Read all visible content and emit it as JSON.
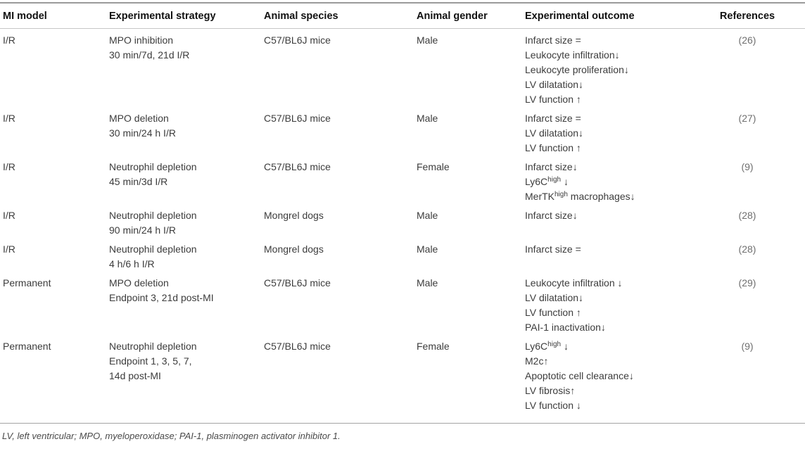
{
  "table": {
    "columns": [
      "MI model",
      "Experimental strategy",
      "Animal species",
      "Animal gender",
      "Experimental outcome",
      "References"
    ],
    "rows": [
      {
        "mi_model": "I/R",
        "strategy": [
          "MPO inhibition",
          "30 min/7d, 21d I/R"
        ],
        "species": "C57/BL6J mice",
        "gender": "Male",
        "outcome": [
          [
            {
              "t": "Infarct size ="
            }
          ],
          [
            {
              "t": "Leukocyte infiltration↓"
            }
          ],
          [
            {
              "t": "Leukocyte proliferation↓"
            }
          ],
          [
            {
              "t": "LV dilatation↓"
            }
          ],
          [
            {
              "t": "LV function ↑"
            }
          ]
        ],
        "reference": "(26)"
      },
      {
        "mi_model": "I/R",
        "strategy": [
          "MPO deletion",
          "30 min/24 h I/R"
        ],
        "species": "C57/BL6J mice",
        "gender": "Male",
        "outcome": [
          [
            {
              "t": "Infarct size ="
            }
          ],
          [
            {
              "t": "LV dilatation↓"
            }
          ],
          [
            {
              "t": "LV function ↑"
            }
          ]
        ],
        "reference": "(27)"
      },
      {
        "mi_model": "I/R",
        "strategy": [
          "Neutrophil depletion",
          "45 min/3d I/R"
        ],
        "species": "C57/BL6J mice",
        "gender": "Female",
        "outcome": [
          [
            {
              "t": "Infarct size↓"
            }
          ],
          [
            {
              "t": "Ly6C"
            },
            {
              "t": "high",
              "sup": true
            },
            {
              "t": " ↓"
            }
          ],
          [
            {
              "t": "MerTK"
            },
            {
              "t": "high",
              "sup": true
            },
            {
              "t": " macrophages↓"
            }
          ]
        ],
        "reference": "(9)"
      },
      {
        "mi_model": "I/R",
        "strategy": [
          "Neutrophil depletion",
          "90 min/24 h I/R"
        ],
        "species": "Mongrel dogs",
        "gender": "Male",
        "outcome": [
          [
            {
              "t": "Infarct size↓"
            }
          ]
        ],
        "reference": "(28)"
      },
      {
        "mi_model": "I/R",
        "strategy": [
          "Neutrophil depletion",
          "4 h/6 h I/R"
        ],
        "species": "Mongrel dogs",
        "gender": "Male",
        "outcome": [
          [
            {
              "t": "Infarct size ="
            }
          ]
        ],
        "reference": "(28)"
      },
      {
        "mi_model": "Permanent",
        "strategy": [
          "MPO deletion",
          "Endpoint 3, 21d post-MI"
        ],
        "species": "C57/BL6J mice",
        "gender": "Male",
        "outcome": [
          [
            {
              "t": "Leukocyte infiltration ↓"
            }
          ],
          [
            {
              "t": "LV dilatation↓"
            }
          ],
          [
            {
              "t": "LV function ↑"
            }
          ],
          [
            {
              "t": "PAI-1 inactivation↓"
            }
          ]
        ],
        "reference": "(29)"
      },
      {
        "mi_model": "Permanent",
        "strategy": [
          "Neutrophil depletion",
          "Endpoint 1, 3, 5, 7,",
          "14d post-MI"
        ],
        "species": "C57/BL6J mice",
        "gender": "Female",
        "outcome": [
          [
            {
              "t": "Ly6C"
            },
            {
              "t": "high",
              "sup": true
            },
            {
              "t": " ↓"
            }
          ],
          [
            {
              "t": "M2c↑"
            }
          ],
          [
            {
              "t": "Apoptotic cell clearance↓"
            }
          ],
          [
            {
              "t": "LV fibrosis↑"
            }
          ],
          [
            {
              "t": "LV function ↓"
            }
          ]
        ],
        "reference": "(9)"
      }
    ]
  },
  "footnote": "LV, left ventricular; MPO, myeloperoxidase; PAI-1, plasminogen activator inhibitor 1.",
  "colors": {
    "header_text": "#111111",
    "body_text": "#3c3c3c",
    "reference_text": "#6f6f6f",
    "rule_top": "#9b9b9b",
    "rule_header": "#c6c6c6",
    "rule_bottom": "#a3a3a3"
  }
}
